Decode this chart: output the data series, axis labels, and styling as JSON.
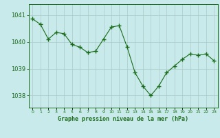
{
  "x": [
    0,
    1,
    2,
    3,
    4,
    5,
    6,
    7,
    8,
    9,
    10,
    11,
    12,
    13,
    14,
    15,
    16,
    17,
    18,
    19,
    20,
    21,
    22,
    23
  ],
  "y": [
    1040.85,
    1040.65,
    1040.1,
    1040.35,
    1040.3,
    1039.9,
    1039.8,
    1039.6,
    1039.65,
    1040.1,
    1040.55,
    1040.6,
    1039.8,
    1038.85,
    1038.35,
    1038.0,
    1038.35,
    1038.85,
    1039.1,
    1039.35,
    1039.55,
    1039.5,
    1039.55,
    1039.3
  ],
  "line_color": "#1a6b1a",
  "marker_color": "#1a6b1a",
  "bg_color": "#c8eaea",
  "grid_color": "#b0cece",
  "axes_color": "#1a6b1a",
  "xlabel": "Graphe pression niveau de la mer (hPa)",
  "xlabel_color": "#1a6b1a",
  "tick_color": "#1a6b1a",
  "ylabel_ticks": [
    1038,
    1039,
    1040,
    1041
  ],
  "ylim": [
    1037.55,
    1041.4
  ],
  "xlim": [
    -0.5,
    23.5
  ],
  "xtick_labels": [
    "0",
    "1",
    "2",
    "3",
    "4",
    "5",
    "6",
    "7",
    "8",
    "9",
    "10",
    "11",
    "12",
    "13",
    "14",
    "15",
    "16",
    "17",
    "18",
    "19",
    "20",
    "21",
    "22",
    "23"
  ]
}
